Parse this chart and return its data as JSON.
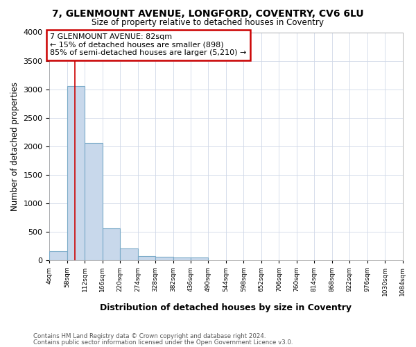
{
  "title1": "7, GLENMOUNT AVENUE, LONGFORD, COVENTRY, CV6 6LU",
  "title2": "Size of property relative to detached houses in Coventry",
  "xlabel": "Distribution of detached houses by size in Coventry",
  "ylabel": "Number of detached properties",
  "footnote1": "Contains HM Land Registry data © Crown copyright and database right 2024.",
  "footnote2": "Contains public sector information licensed under the Open Government Licence v3.0.",
  "bar_color": "#c8d8eb",
  "bar_edge_color": "#7aaac8",
  "annotation_line1": "7 GLENMOUNT AVENUE: 82sqm",
  "annotation_line2": "← 15% of detached houses are smaller (898)",
  "annotation_line3": "85% of semi-detached houses are larger (5,210) →",
  "annotation_box_color": "#ffffff",
  "annotation_box_edge": "#cc0000",
  "property_line_x": 82,
  "property_line_color": "#cc0000",
  "bin_edges": [
    4,
    58,
    112,
    166,
    220,
    274,
    328,
    382,
    436,
    490,
    544,
    598,
    652,
    706,
    760,
    814,
    868,
    922,
    976,
    1030,
    1084
  ],
  "bin_values": [
    150,
    3060,
    2060,
    560,
    210,
    75,
    55,
    40,
    40,
    0,
    0,
    0,
    0,
    0,
    0,
    0,
    0,
    0,
    0,
    0
  ],
  "ylim": [
    0,
    4000
  ],
  "yticks": [
    0,
    500,
    1000,
    1500,
    2000,
    2500,
    3000,
    3500,
    4000
  ],
  "background_color": "#ffffff",
  "plot_bg_color": "#ffffff",
  "grid_color": "#d0d8e8"
}
